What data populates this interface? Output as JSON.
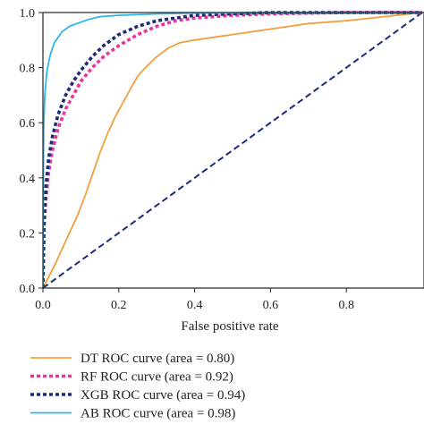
{
  "chart_data": {
    "type": "line",
    "title": "",
    "xlabel": "False positive rate",
    "ylabel": "",
    "xlim": [
      0,
      1
    ],
    "ylim": [
      0,
      1
    ],
    "x_ticks": [
      0.0,
      0.2,
      0.4,
      0.6,
      0.8
    ],
    "x_tick_labels": [
      "0.0",
      "0.2",
      "0.4",
      "0.6",
      "0.8"
    ],
    "y_ticks": [
      0.0,
      0.2,
      0.4,
      0.6,
      0.8,
      1.0
    ],
    "y_tick_labels": [
      "0.0",
      "0.2",
      "0.4",
      "0.6",
      "0.8",
      "1.0"
    ],
    "grid": false,
    "legend_position": "bottom",
    "series": [
      {
        "name": "DT ROC curve (area = 0.80)",
        "color": "#f2a03d",
        "style": "solid",
        "x": [
          0,
          0.03,
          0.06,
          0.09,
          0.11,
          0.13,
          0.15,
          0.17,
          0.19,
          0.21,
          0.23,
          0.25,
          0.27,
          0.3,
          0.33,
          0.36,
          0.4,
          0.5,
          0.6,
          0.7,
          0.8,
          0.9,
          1.0
        ],
        "y": [
          0,
          0.08,
          0.17,
          0.26,
          0.33,
          0.41,
          0.49,
          0.56,
          0.62,
          0.67,
          0.72,
          0.77,
          0.8,
          0.84,
          0.87,
          0.89,
          0.9,
          0.92,
          0.94,
          0.96,
          0.97,
          0.985,
          1.0
        ]
      },
      {
        "name": "RF ROC curve (area = 0.92)",
        "color": "#e8359c",
        "style": "dotted",
        "x": [
          0,
          0.003,
          0.008,
          0.015,
          0.025,
          0.04,
          0.06,
          0.08,
          0.1,
          0.13,
          0.16,
          0.2,
          0.25,
          0.3,
          0.35,
          0.4,
          0.5,
          0.6,
          0.8,
          1.0
        ],
        "y": [
          0,
          0.22,
          0.33,
          0.42,
          0.5,
          0.58,
          0.65,
          0.7,
          0.75,
          0.8,
          0.84,
          0.88,
          0.92,
          0.95,
          0.97,
          0.98,
          0.99,
          0.995,
          1.0,
          1.0
        ]
      },
      {
        "name": "XGB ROC curve (area = 0.94)",
        "color": "#1c2b7a",
        "style": "dotted",
        "x": [
          0,
          0.003,
          0.008,
          0.015,
          0.025,
          0.04,
          0.06,
          0.08,
          0.1,
          0.13,
          0.16,
          0.2,
          0.25,
          0.3,
          0.35,
          0.4,
          0.5,
          0.6,
          0.8,
          1.0
        ],
        "y": [
          0,
          0.25,
          0.37,
          0.47,
          0.55,
          0.63,
          0.7,
          0.75,
          0.79,
          0.84,
          0.88,
          0.92,
          0.95,
          0.97,
          0.98,
          0.99,
          0.995,
          1.0,
          1.0,
          1.0
        ]
      },
      {
        "name": "AB ROC curve (area = 0.98)",
        "color": "#2bb7ea",
        "style": "solid",
        "x": [
          0,
          0.002,
          0.005,
          0.01,
          0.015,
          0.02,
          0.03,
          0.04,
          0.05,
          0.07,
          0.09,
          0.12,
          0.15,
          0.2,
          0.3,
          0.4,
          0.6,
          0.8,
          1.0
        ],
        "y": [
          0,
          0.58,
          0.7,
          0.78,
          0.82,
          0.85,
          0.89,
          0.91,
          0.93,
          0.95,
          0.96,
          0.975,
          0.985,
          0.99,
          0.995,
          0.998,
          1.0,
          1.0,
          1.0
        ]
      },
      {
        "name": "",
        "color": "#1c2b7a",
        "style": "dashed",
        "x": [
          0,
          1
        ],
        "y": [
          0,
          1
        ]
      }
    ]
  }
}
